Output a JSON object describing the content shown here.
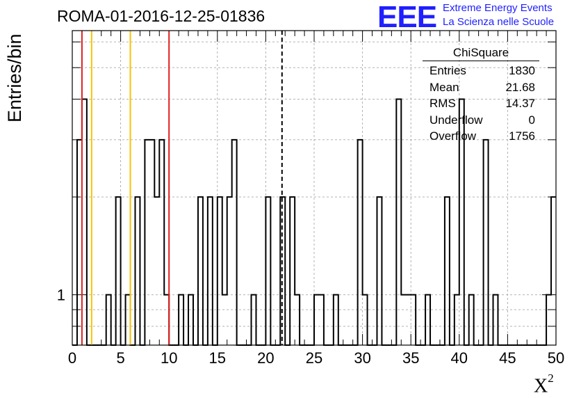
{
  "header": {
    "title": "ROMA-01-2016-12-25-01836"
  },
  "logo": {
    "mark": "EEE",
    "line1": "Extreme Energy Events",
    "line2": "La Scienza nelle Scuole",
    "color": "#1f1fff"
  },
  "stats": {
    "name": "ChiSquare",
    "rows": [
      {
        "label": "Entries",
        "value": "1830"
      },
      {
        "label": "Mean",
        "value": "21.68"
      },
      {
        "label": "RMS",
        "value": "14.37"
      },
      {
        "label": "Underflow",
        "value": "0"
      },
      {
        "label": "Overflow",
        "value": "1756"
      }
    ]
  },
  "chart_data": {
    "type": "histogram",
    "ylabel": "Entries/bin",
    "xlabel": "X",
    "xlabel_sup": "2",
    "xlim": [
      0,
      50
    ],
    "yscale": "log",
    "ylim": [
      0.7,
      6.5
    ],
    "y_tick_label": "1",
    "x_ticks": [
      0,
      5,
      10,
      15,
      20,
      25,
      30,
      35,
      40,
      45,
      50
    ],
    "grid": true,
    "bin_width": 0.5,
    "bins": [
      {
        "x0": 0.5,
        "x1": 1.0,
        "y": 3
      },
      {
        "x0": 1.0,
        "x1": 1.5,
        "y": 4
      },
      {
        "x0": 3.5,
        "x1": 4.0,
        "y": 1
      },
      {
        "x0": 4.5,
        "x1": 5.0,
        "y": 2
      },
      {
        "x0": 5.5,
        "x1": 6.0,
        "y": 1
      },
      {
        "x0": 6.5,
        "x1": 7.0,
        "y": 2
      },
      {
        "x0": 7.5,
        "x1": 8.5,
        "y": 3
      },
      {
        "x0": 8.5,
        "x1": 9.0,
        "y": 2
      },
      {
        "x0": 9.0,
        "x1": 9.5,
        "y": 3
      },
      {
        "x0": 9.5,
        "x1": 10.0,
        "y": 1
      },
      {
        "x0": 11.0,
        "x1": 11.5,
        "y": 1
      },
      {
        "x0": 12.0,
        "x1": 12.5,
        "y": 1
      },
      {
        "x0": 13.0,
        "x1": 13.5,
        "y": 2
      },
      {
        "x0": 14.0,
        "x1": 14.5,
        "y": 2
      },
      {
        "x0": 15.0,
        "x1": 15.5,
        "y": 2
      },
      {
        "x0": 15.5,
        "x1": 16.0,
        "y": 1
      },
      {
        "x0": 16.0,
        "x1": 16.5,
        "y": 2
      },
      {
        "x0": 16.5,
        "x1": 17.0,
        "y": 3
      },
      {
        "x0": 18.5,
        "x1": 19.0,
        "y": 1
      },
      {
        "x0": 20.0,
        "x1": 20.5,
        "y": 2
      },
      {
        "x0": 21.5,
        "x1": 22.0,
        "y": 2
      },
      {
        "x0": 22.5,
        "x1": 23.0,
        "y": 2
      },
      {
        "x0": 23.0,
        "x1": 23.5,
        "y": 1
      },
      {
        "x0": 25.0,
        "x1": 26.0,
        "y": 1
      },
      {
        "x0": 27.0,
        "x1": 27.5,
        "y": 1
      },
      {
        "x0": 29.5,
        "x1": 30.0,
        "y": 3
      },
      {
        "x0": 30.0,
        "x1": 30.5,
        "y": 1
      },
      {
        "x0": 31.5,
        "x1": 32.0,
        "y": 2
      },
      {
        "x0": 33.5,
        "x1": 34.0,
        "y": 4
      },
      {
        "x0": 34.0,
        "x1": 35.5,
        "y": 1
      },
      {
        "x0": 36.5,
        "x1": 37.0,
        "y": 1
      },
      {
        "x0": 38.5,
        "x1": 39.0,
        "y": 2
      },
      {
        "x0": 39.5,
        "x1": 40.0,
        "y": 1
      },
      {
        "x0": 40.0,
        "x1": 40.5,
        "y": 4
      },
      {
        "x0": 41.0,
        "x1": 41.5,
        "y": 1
      },
      {
        "x0": 42.5,
        "x1": 43.0,
        "y": 3
      },
      {
        "x0": 43.5,
        "x1": 44.0,
        "y": 1
      },
      {
        "x0": 49.5,
        "x1": 50.0,
        "y": 2
      }
    ],
    "partial_bins_at_edge": [
      {
        "x0": 49.0,
        "x1": 49.5,
        "y": 1
      }
    ],
    "vertical_lines": [
      {
        "x": 1.0,
        "color": "#e0201f",
        "style": "solid"
      },
      {
        "x": 2.0,
        "color": "#f5c400",
        "style": "solid"
      },
      {
        "x": 6.0,
        "color": "#f5c400",
        "style": "solid"
      },
      {
        "x": 10.0,
        "color": "#e0201f",
        "style": "solid"
      },
      {
        "x": 21.68,
        "color": "#000000",
        "style": "dashed"
      }
    ]
  }
}
